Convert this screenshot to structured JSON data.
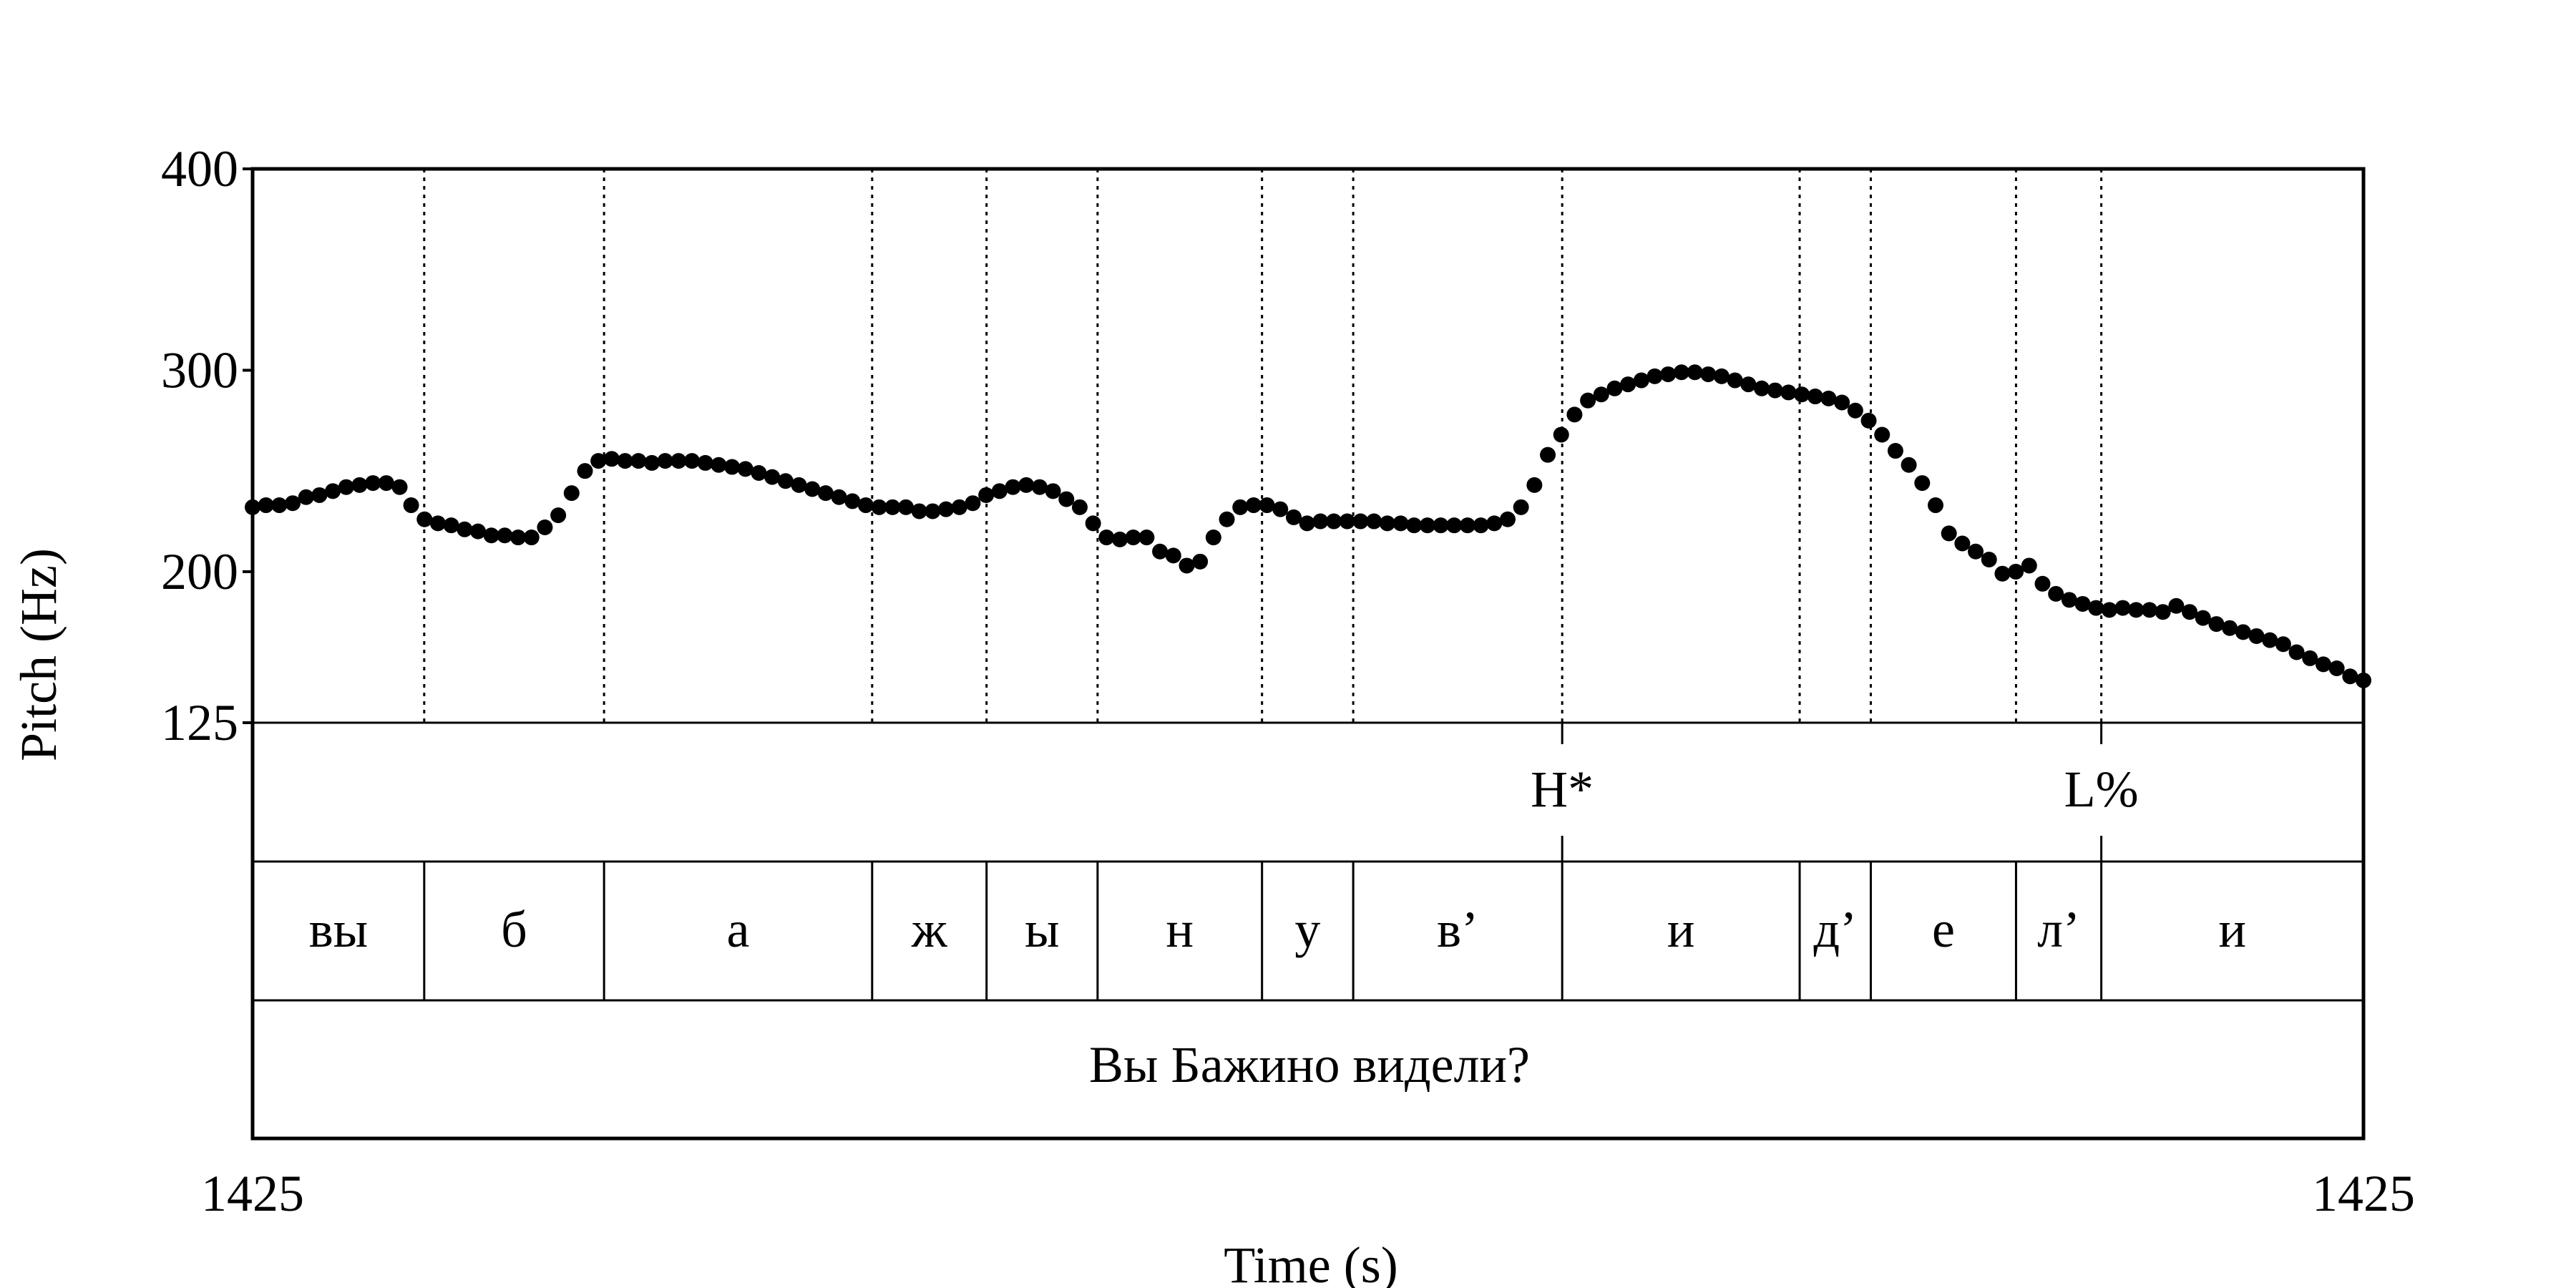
{
  "chart_data": {
    "type": "scatter",
    "ylabel": "Pitch (Hz)",
    "xlabel": "Time (s)",
    "x_tick_labels": [
      "1425",
      "1425"
    ],
    "y_ticks": [
      400,
      300,
      200,
      125
    ],
    "ylim": [
      125,
      400
    ],
    "grid": false,
    "boundaries_fraction": [
      0.0813,
      0.1665,
      0.2935,
      0.3477,
      0.4003,
      0.4782,
      0.5214,
      0.6204,
      0.7329,
      0.7666,
      0.8354,
      0.8758
    ],
    "tone_tier": [
      {
        "label": "H*",
        "at": 0.6204
      },
      {
        "label": "L%",
        "at": 0.8758
      }
    ],
    "segments": [
      "вы",
      "б",
      "а",
      "ж",
      "ы",
      "н",
      "у",
      "в’",
      "и",
      "д’",
      "е",
      "л’",
      "и"
    ],
    "sentence": "Вы Бажино видели?",
    "pitch_points": [
      [
        0.0,
        232
      ],
      [
        0.007,
        233
      ],
      [
        0.014,
        233
      ],
      [
        0.021,
        234
      ],
      [
        0.028,
        237
      ],
      [
        0.035,
        238
      ],
      [
        0.042,
        240
      ],
      [
        0.049,
        242
      ],
      [
        0.056,
        243
      ],
      [
        0.063,
        244
      ],
      [
        0.07,
        244
      ],
      [
        0.077,
        242
      ],
      [
        0.083,
        233
      ],
      [
        0.09,
        226
      ],
      [
        0.097,
        224
      ],
      [
        0.104,
        223
      ],
      [
        0.111,
        221
      ],
      [
        0.118,
        220
      ],
      [
        0.125,
        218
      ],
      [
        0.132,
        218
      ],
      [
        0.139,
        217
      ],
      [
        0.146,
        217
      ],
      [
        0.153,
        222
      ],
      [
        0.16,
        228
      ],
      [
        0.167,
        239
      ],
      [
        0.174,
        250
      ],
      [
        0.181,
        255
      ],
      [
        0.188,
        256
      ],
      [
        0.195,
        255
      ],
      [
        0.202,
        255
      ],
      [
        0.209,
        254
      ],
      [
        0.216,
        255
      ],
      [
        0.223,
        255
      ],
      [
        0.23,
        255
      ],
      [
        0.237,
        254
      ],
      [
        0.244,
        253
      ],
      [
        0.251,
        252
      ],
      [
        0.258,
        251
      ],
      [
        0.265,
        249
      ],
      [
        0.272,
        247
      ],
      [
        0.279,
        245
      ],
      [
        0.286,
        243
      ],
      [
        0.293,
        241
      ],
      [
        0.3,
        239
      ],
      [
        0.307,
        237
      ],
      [
        0.314,
        235
      ],
      [
        0.321,
        233
      ],
      [
        0.328,
        232
      ],
      [
        0.335,
        232
      ],
      [
        0.342,
        232
      ],
      [
        0.349,
        230
      ],
      [
        0.356,
        230
      ],
      [
        0.363,
        231
      ],
      [
        0.37,
        232
      ],
      [
        0.377,
        234
      ],
      [
        0.384,
        238
      ],
      [
        0.391,
        240
      ],
      [
        0.398,
        242
      ],
      [
        0.405,
        243
      ],
      [
        0.412,
        242
      ],
      [
        0.419,
        240
      ],
      [
        0.426,
        236
      ],
      [
        0.433,
        232
      ],
      [
        0.44,
        224
      ],
      [
        0.447,
        217
      ],
      [
        0.454,
        216
      ],
      [
        0.461,
        217
      ],
      [
        0.468,
        217
      ],
      [
        0.475,
        210
      ],
      [
        0.482,
        208
      ],
      [
        0.489,
        203
      ],
      [
        0.496,
        205
      ],
      [
        0.503,
        217
      ],
      [
        0.51,
        226
      ],
      [
        0.517,
        232
      ],
      [
        0.524,
        233
      ],
      [
        0.531,
        233
      ],
      [
        0.538,
        231
      ],
      [
        0.545,
        227
      ],
      [
        0.552,
        224
      ],
      [
        0.559,
        225
      ],
      [
        0.566,
        225
      ],
      [
        0.573,
        225
      ],
      [
        0.58,
        225
      ],
      [
        0.587,
        225
      ],
      [
        0.594,
        224
      ],
      [
        0.601,
        224
      ],
      [
        0.608,
        223
      ],
      [
        0.615,
        223
      ],
      [
        0.622,
        223
      ],
      [
        0.629,
        223
      ],
      [
        0.636,
        223
      ],
      [
        0.643,
        223
      ],
      [
        0.65,
        224
      ],
      [
        0.657,
        226
      ],
      [
        0.664,
        232
      ],
      [
        0.671,
        243
      ],
      [
        0.678,
        258
      ],
      [
        0.685,
        268
      ],
      [
        0.692,
        278
      ],
      [
        0.699,
        285
      ],
      [
        0.706,
        288
      ],
      [
        0.713,
        291
      ],
      [
        0.72,
        293
      ],
      [
        0.727,
        295
      ],
      [
        0.734,
        297
      ],
      [
        0.741,
        298
      ],
      [
        0.748,
        299
      ],
      [
        0.755,
        299
      ],
      [
        0.762,
        298
      ],
      [
        0.769,
        297
      ],
      [
        0.776,
        295
      ],
      [
        0.783,
        293
      ],
      [
        0.79,
        291
      ],
      [
        0.797,
        290
      ],
      [
        0.804,
        289
      ],
      [
        0.811,
        288
      ],
      [
        0.818,
        287
      ],
      [
        0.825,
        286
      ],
      [
        0.832,
        284
      ],
      [
        0.839,
        280
      ],
      [
        0.846,
        275
      ],
      [
        0.853,
        268
      ],
      [
        0.86,
        260
      ],
      [
        0.867,
        253
      ],
      [
        0.874,
        244
      ],
      [
        0.881,
        233
      ],
      [
        0.888,
        219
      ],
      [
        0.895,
        214
      ],
      [
        0.902,
        210
      ],
      [
        0.909,
        206
      ],
      [
        0.916,
        199
      ],
      [
        0.923,
        200
      ],
      [
        0.93,
        203
      ],
      [
        0.937,
        194
      ],
      [
        0.944,
        189
      ],
      [
        0.951,
        186
      ],
      [
        0.958,
        184
      ],
      [
        0.965,
        182
      ],
      [
        0.972,
        181
      ],
      [
        0.979,
        182
      ],
      [
        0.986,
        181
      ],
      [
        0.993,
        181
      ],
      [
        1.0,
        180
      ],
      [
        1.007,
        183
      ],
      [
        1.014,
        180
      ],
      [
        1.021,
        177
      ],
      [
        1.028,
        174
      ],
      [
        1.035,
        172
      ],
      [
        1.042,
        170
      ],
      [
        1.049,
        168
      ],
      [
        1.056,
        166
      ],
      [
        1.063,
        164
      ],
      [
        1.07,
        160
      ],
      [
        1.077,
        157
      ],
      [
        1.084,
        154
      ],
      [
        1.091,
        152
      ],
      [
        1.098,
        148
      ],
      [
        1.105,
        146
      ]
    ],
    "x_end": 1.105
  }
}
